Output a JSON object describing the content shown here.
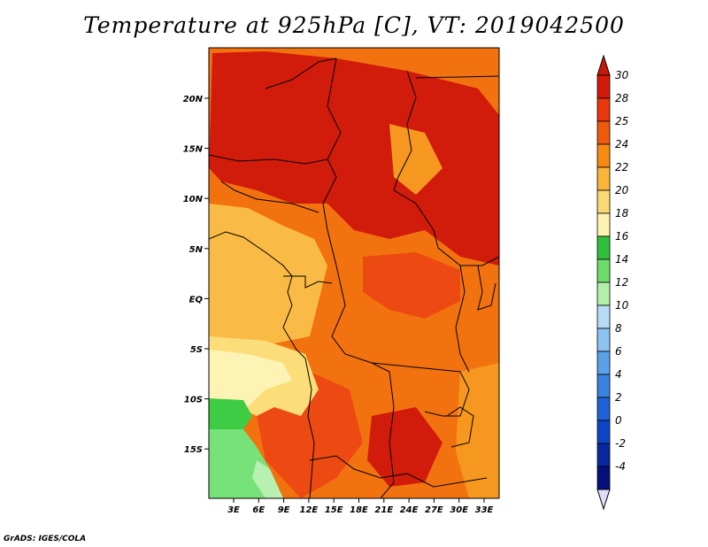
{
  "title": "Temperature at 925hPa [C], VT: 2019042500",
  "credit": "GrADS: IGES/COLA",
  "lat_ticks": [
    "20N",
    "15N",
    "10N",
    "5N",
    "EQ",
    "5S",
    "10S",
    "15S"
  ],
  "lon_ticks": [
    "3E",
    "6E",
    "9E",
    "12E",
    "15E",
    "18E",
    "21E",
    "24E",
    "27E",
    "30E",
    "33E"
  ],
  "colorbar": {
    "labels": [
      "30",
      "28",
      "25",
      "24",
      "22",
      "20",
      "18",
      "16",
      "14",
      "12",
      "10",
      "8",
      "6",
      "4",
      "2",
      "0",
      "-2",
      "-4"
    ],
    "colors": [
      "#d31a0a",
      "#e8360d",
      "#f05a0c",
      "#f78a10",
      "#f9b53a",
      "#fbd873",
      "#fdf3b0",
      "#2fc13c",
      "#6edc6a",
      "#b4efa8",
      "#b7dcf6",
      "#8cc3f0",
      "#5aa1e8",
      "#3a82df",
      "#1f62d5",
      "#0d45c4",
      "#08289e",
      "#05107a"
    ],
    "top_arrow": "#c81808",
    "bottom_arrow": "#e0dcf8"
  },
  "field_colors": {
    "hot": "#d11c0b",
    "warm": "#ec4a12",
    "orange": "#f2720f",
    "amber": "#f6981f",
    "light": "#f9bb45",
    "pale": "#fbdd7a",
    "cream": "#fdf3b4",
    "green1": "#3fcc45",
    "green2": "#78e27a",
    "green3": "#b7f0b0"
  }
}
